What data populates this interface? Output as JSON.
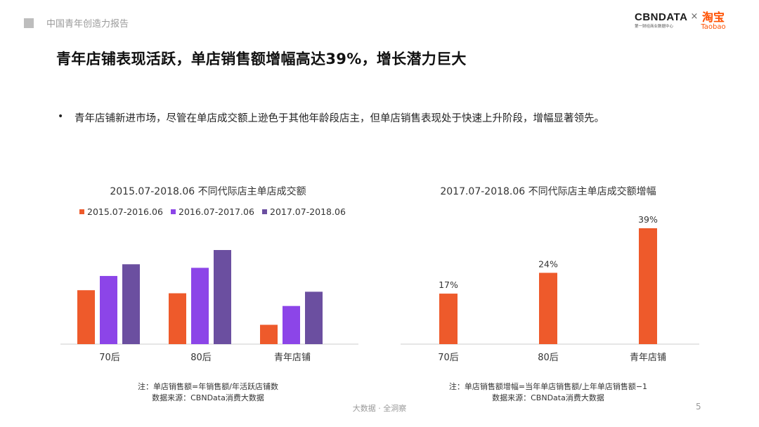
{
  "header": {
    "report_title": "中国青年创造力报告"
  },
  "logo": {
    "brand": "CBNDATA",
    "brand_sub": "第一财经商业数据中心",
    "times": "×",
    "taobao_cn": "淘宝",
    "taobao_en": "Taobao"
  },
  "slide": {
    "title": "青年店铺表现活跃，单店销售额增幅高达39%，增长潜力巨大",
    "bullet": "青年店铺新进市场，尽管在单店成交额上逊色于其他年龄段店主，但单店销售表现处于快速上升阶段，增幅显著领先。"
  },
  "colors": {
    "orange": "#ee5a2b",
    "purple": "#8c45e8",
    "slate": "#6b4fa0",
    "axis": "#cccccc"
  },
  "chart_data": [
    {
      "type": "bar",
      "title": "2015.07-2018.06 不同代际店主单店成交额",
      "categories": [
        "70后",
        "80后",
        "青年店铺"
      ],
      "series": [
        {
          "name": "2015.07-2016.06",
          "values": [
            10.6,
            10.0,
            3.8
          ]
        },
        {
          "name": "2016.07-2017.06",
          "values": [
            13.4,
            15.0,
            7.5
          ]
        },
        {
          "name": "2017.07-2018.06",
          "values": [
            15.7,
            18.5,
            10.3
          ]
        }
      ],
      "value_labels": false,
      "ylim": [
        0,
        20
      ],
      "note_lines": [
        "注：单店销售额=年销售额/年活跃店铺数",
        "数据来源：CBNData消费大数据"
      ]
    },
    {
      "type": "bar",
      "title": "2017.07-2018.06 不同代际店主单店成交额增幅",
      "categories": [
        "70后",
        "80后",
        "青年店铺"
      ],
      "values": [
        17,
        24,
        39
      ],
      "value_labels": [
        "17%",
        "24%",
        "39%"
      ],
      "ylim": [
        0,
        40
      ],
      "note_lines": [
        "注：单店销售额增幅=当年单店销售额/上年单店销售额−1",
        "数据来源：CBNData消费大数据"
      ]
    }
  ],
  "footer": {
    "text": "大数据 · 全洞察",
    "page": "5"
  }
}
